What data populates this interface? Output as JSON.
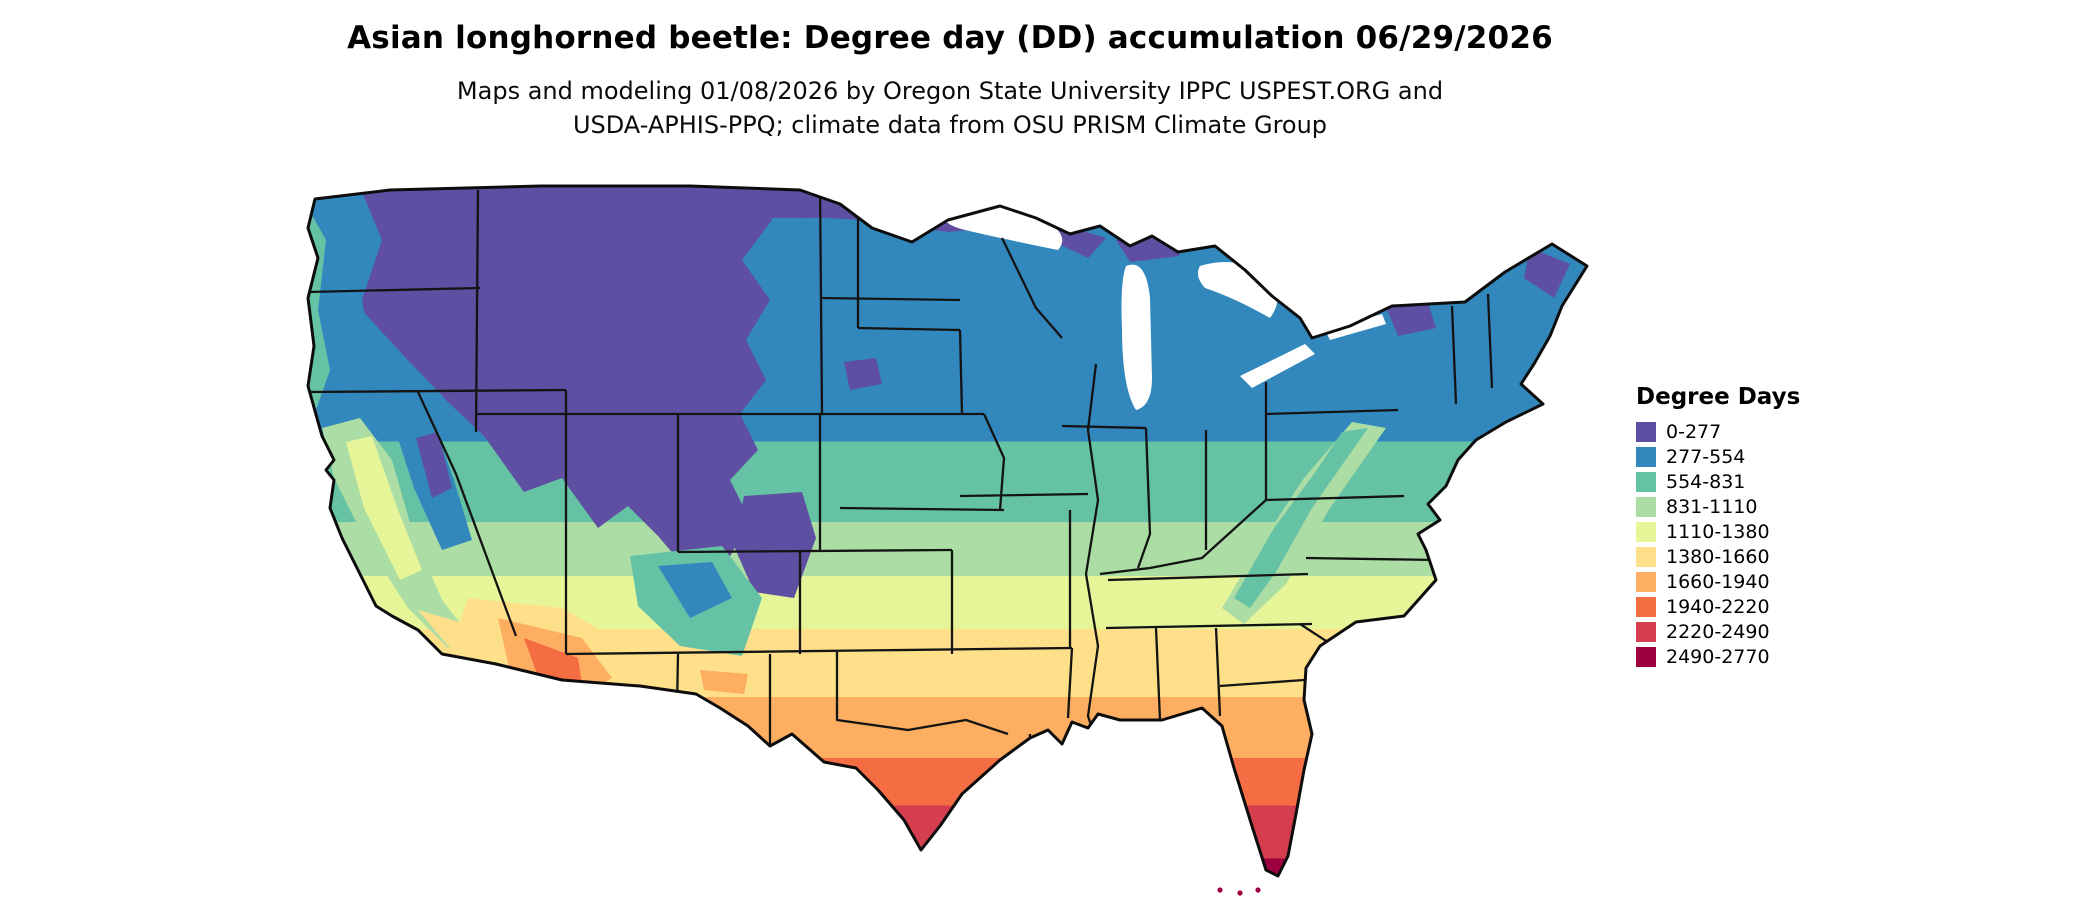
{
  "title": "Asian longhorned beetle: Degree day (DD) accumulation 06/29/2026",
  "subtitle": {
    "line1": "Maps and modeling 01/08/2026 by Oregon State University IPPC USPEST.ORG and",
    "line2": "USDA-APHIS-PPQ; climate data from OSU PRISM Climate Group"
  },
  "legend": {
    "title": "Degree Days",
    "entries": [
      {
        "label": "0-277",
        "color": "#5e4fa2"
      },
      {
        "label": "277-554",
        "color": "#3288bd"
      },
      {
        "label": "554-831",
        "color": "#66c2a5"
      },
      {
        "label": "831-1110",
        "color": "#abdda4"
      },
      {
        "label": "1110-1380",
        "color": "#e6f598"
      },
      {
        "label": "1380-1660",
        "color": "#fee08b"
      },
      {
        "label": "1660-1940",
        "color": "#fdae61"
      },
      {
        "label": "1940-2220",
        "color": "#f46d43"
      },
      {
        "label": "2220-2490",
        "color": "#d53e4f"
      },
      {
        "label": "2490-2770",
        "color": "#9e0142"
      }
    ]
  },
  "chart_data": {
    "type": "heatmap",
    "title": "Asian longhorned beetle: Degree day (DD) accumulation 06/29/2026",
    "map_region": "Contiguous United States",
    "legend_title": "Degree Days",
    "bins": [
      {
        "range": "0-277",
        "color": "#5e4fa2"
      },
      {
        "range": "277-554",
        "color": "#3288bd"
      },
      {
        "range": "554-831",
        "color": "#66c2a5"
      },
      {
        "range": "831-1110",
        "color": "#abdda4"
      },
      {
        "range": "1110-1380",
        "color": "#e6f598"
      },
      {
        "range": "1380-1660",
        "color": "#fee08b"
      },
      {
        "range": "1660-1940",
        "color": "#fdae61"
      },
      {
        "range": "1940-2220",
        "color": "#f46d43"
      },
      {
        "range": "2220-2490",
        "color": "#d53e4f"
      },
      {
        "range": "2490-2770",
        "color": "#9e0142"
      }
    ],
    "legend_position": "right"
  }
}
